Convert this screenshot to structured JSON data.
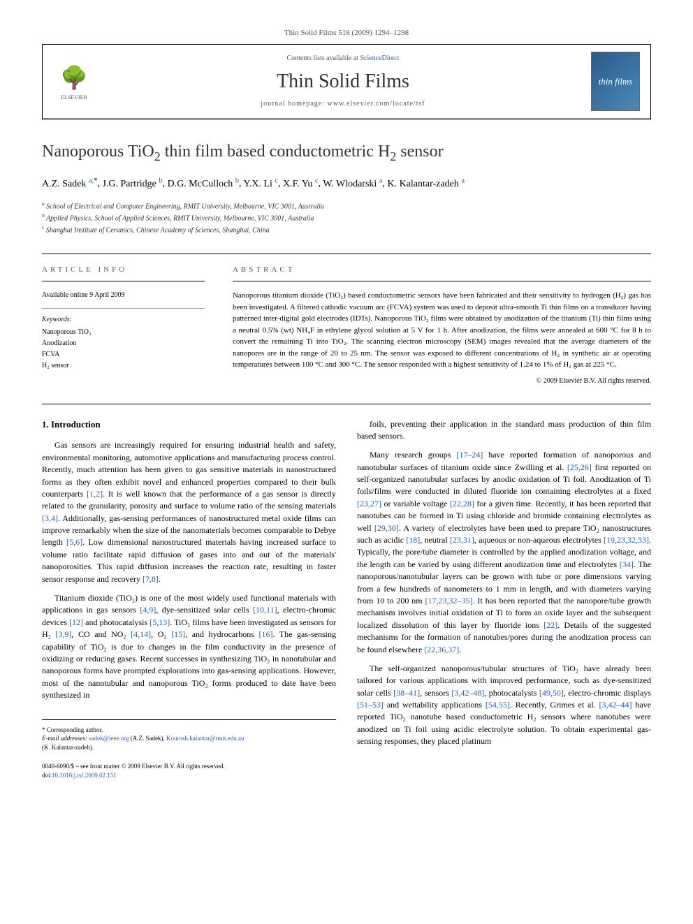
{
  "citation": "Thin Solid Films 518 (2009) 1294–1298",
  "header": {
    "contents_prefix": "Contents lists available at ",
    "contents_link": "ScienceDirect",
    "journal_title": "Thin Solid Films",
    "homepage_prefix": "journal homepage: ",
    "homepage": "www.elsevier.com/locate/tsf",
    "publisher_name": "ELSEVIER",
    "cover_text": "thin films"
  },
  "title_parts": [
    "Nanoporous TiO",
    "2",
    " thin film based conductometric H",
    "2",
    " sensor"
  ],
  "authors": [
    {
      "name": "A.Z. Sadek",
      "affil": "a,",
      "mark": "*"
    },
    {
      "name": "J.G. Partridge",
      "affil": "b"
    },
    {
      "name": "D.G. McCulloch",
      "affil": "b"
    },
    {
      "name": "Y.X. Li",
      "affil": "c"
    },
    {
      "name": "X.F. Yu",
      "affil": "c"
    },
    {
      "name": "W. Wlodarski",
      "affil": "a"
    },
    {
      "name": "K. Kalantar-zadeh",
      "affil": "a"
    }
  ],
  "affiliations": [
    {
      "sup": "a",
      "text": "School of Electrical and Computer Engineering, RMIT University, Melbourne, VIC 3001, Australia"
    },
    {
      "sup": "b",
      "text": "Applied Physics, School of Applied Sciences, RMIT University, Melbourne, VIC 3001, Australia"
    },
    {
      "sup": "c",
      "text": "Shanghai Institute of Ceramics, Chinese Academy of Sciences, Shanghai, China"
    }
  ],
  "info": {
    "label": "ARTICLE INFO",
    "available": "Available online 9 April 2009",
    "keywords_label": "Keywords:",
    "keywords": [
      "Nanoporous TiO₂",
      "Anodization",
      "FCVA",
      "H₂ sensor"
    ]
  },
  "abstract": {
    "label": "ABSTRACT",
    "text": "Nanoporous titanium dioxide (TiO₂) based conductometric sensors have been fabricated and their sensitivity to hydrogen (H₂) gas has been investigated. A filtered cathodic vacuum arc (FCVA) system was used to deposit ultra-smooth Ti thin films on a transducer having patterned inter-digital gold electrodes (IDTs). Nanoporous TiO₂ films were obtained by anodization of the titanium (Ti) thin films using a neutral 0.5% (wt) NH₄F in ethylene glycol solution at 5 V for 1 h. After anodization, the films were annealed at 600 °C for 8 h to convert the remaining Ti into TiO₂. The scanning electron microscopy (SEM) images revealed that the average diameters of the nanopores are in the range of 20 to 25 nm. The sensor was exposed to different concentrations of H₂ in synthetic air at operating temperatures between 100 °C and 300 °C. The sensor responded with a highest sensitivity of 1.24 to 1% of H₂ gas at 225 °C.",
    "copyright": "© 2009 Elsevier B.V. All rights reserved."
  },
  "body": {
    "intro_heading": "1. Introduction",
    "left_paras": [
      "Gas sensors are increasingly required for ensuring industrial health and safety, environmental monitoring, automotive applications and manufacturing process control. Recently, much attention has been given to gas sensitive materials in nanostructured forms as they often exhibit novel and enhanced properties compared to their bulk counterparts [1,2]. It is well known that the performance of a gas sensor is directly related to the granularity, porosity and surface to volume ratio of the sensing materials [3,4]. Additionally, gas-sensing performances of nanostructured metal oxide films can improve remarkably when the size of the nanomaterials becomes comparable to Debye length [5,6]. Low dimensional nanostructured materials having increased surface to volume ratio facilitate rapid diffusion of gases into and out of the materials' nanoporosities. This rapid diffusion increases the reaction rate, resulting in faster sensor response and recovery [7,8].",
      "Titanium dioxide (TiO₂) is one of the most widely used functional materials with applications in gas sensors [4,9], dye-sensitized solar cells [10,11], electro-chromic devices [12] and photocatalysis [5,13]. TiO₂ films have been investigated as sensors for H₂ [3,9], CO and NO₂ [4,14], O₂ [15], and hydrocarbons [16]. The gas-sensing capability of TiO₂ is due to changes in the film conductivity in the presence of oxidizing or reducing gases. Recent successes in synthesizing TiO₂ in nanotubular and nanoporous forms have prompted explorations into gas-sensing applications. However, most of the nanotubular and nanoporous TiO₂ forms produced to date have been synthesized in"
    ],
    "right_paras": [
      "foils, preventing their application in the standard mass production of thin film based sensors.",
      "Many research groups [17–24] have reported formation of nanoporous and nanotubular surfaces of titanium oxide since Zwilling et al. [25,26] first reported on self-organized nanotubular surfaces by anodic oxidation of Ti foil. Anodization of Ti foils/films were conducted in diluted fluoride ion containing electrolytes at a fixed [23,27] or variable voltage [22,28] for a given time. Recently, it has been reported that nanotubes can be formed in Ti using chloride and bromide containing electrolytes as well [29,30]. A variety of electrolytes have been used to prepare TiO₂ nanostructures such as acidic [18], neutral [23,31], aqueous or non-aqueous electrolytes [19,23,32,33]. Typically, the pore/tube diameter is controlled by the applied anodization voltage, and the length can be varied by using different anodization time and electrolytes [34]. The nanoporous/nanotubular layers can be grown with tube or pore dimensions varying from a few hundreds of nanometers to 1 mm in length, and with diameters varying from 10 to 200 nm [17,23,32–35]. It has been reported that the nanopore/tube growth mechanism involves initial oxidation of Ti to form an oxide layer and the subsequent localized dissolution of this layer by fluoride ions [22]. Details of the suggested mechanisms for the formation of nanotubes/pores during the anodization process can be found elsewhere [22,36,37].",
      "The self-organized nanoporous/tubular structures of TiO₂ have already been tailored for various applications with improved performance, such as dye-sensitized solar cells [38–41], sensors [3,42–48], photocatalysts [49,50], electro-chromic displays [51–53] and wettability applications [54,55]. Recently, Grimes et al. [3,42–44] have reported TiO₂ nanotube based conductometric H₂ sensors where nanotubes were anodized on Ti foil using acidic electrolyte solution. To obtain experimental gas-sensing responses, they placed platinum"
    ]
  },
  "footer": {
    "corr_label": "* Corresponding author.",
    "email_label": "E-mail addresses: ",
    "emails": [
      {
        "addr": "sadek@ieee.org",
        "who": "(A.Z. Sadek), "
      },
      {
        "addr": "Kourosh.kalantar@rmit.edu.au",
        "who": ""
      }
    ],
    "email_tail": "(K. Kalantar-zadeh).",
    "issn": "0040-6090/$ – see front matter © 2009 Elsevier B.V. All rights reserved.",
    "doi_label": "doi:",
    "doi": "10.1016/j.tsf.2009.02.151"
  },
  "refs_in_text": {
    "l1": "[1,2]",
    "l2": "[3,4]",
    "l3": "[5,6]",
    "l4": "[7,8]",
    "l5": "[4,9]",
    "l6": "[10,11]",
    "l7": "[12]",
    "l8": "[5,13]",
    "l9": "[3,9]",
    "l10": "[4,14]",
    "l11": "[15]",
    "l12": "[16]",
    "r1": "[17–24]",
    "r2": "[25,26]",
    "r3": "[23,27]",
    "r4": "[22,28]",
    "r5": "[29,30]",
    "r6": "[18]",
    "r7": "[23,31]",
    "r8": "[19,23,32,33]",
    "r9": "[34]",
    "r10": "[17,23,32–35]",
    "r11": "[22]",
    "r12": "[22,36,37]",
    "r13": "[38–41]",
    "r14": "[3,42–48]",
    "r15": "[49,50]",
    "r16": "[51–53]",
    "r17": "[54,55]",
    "r18": "[3,42–44]"
  }
}
